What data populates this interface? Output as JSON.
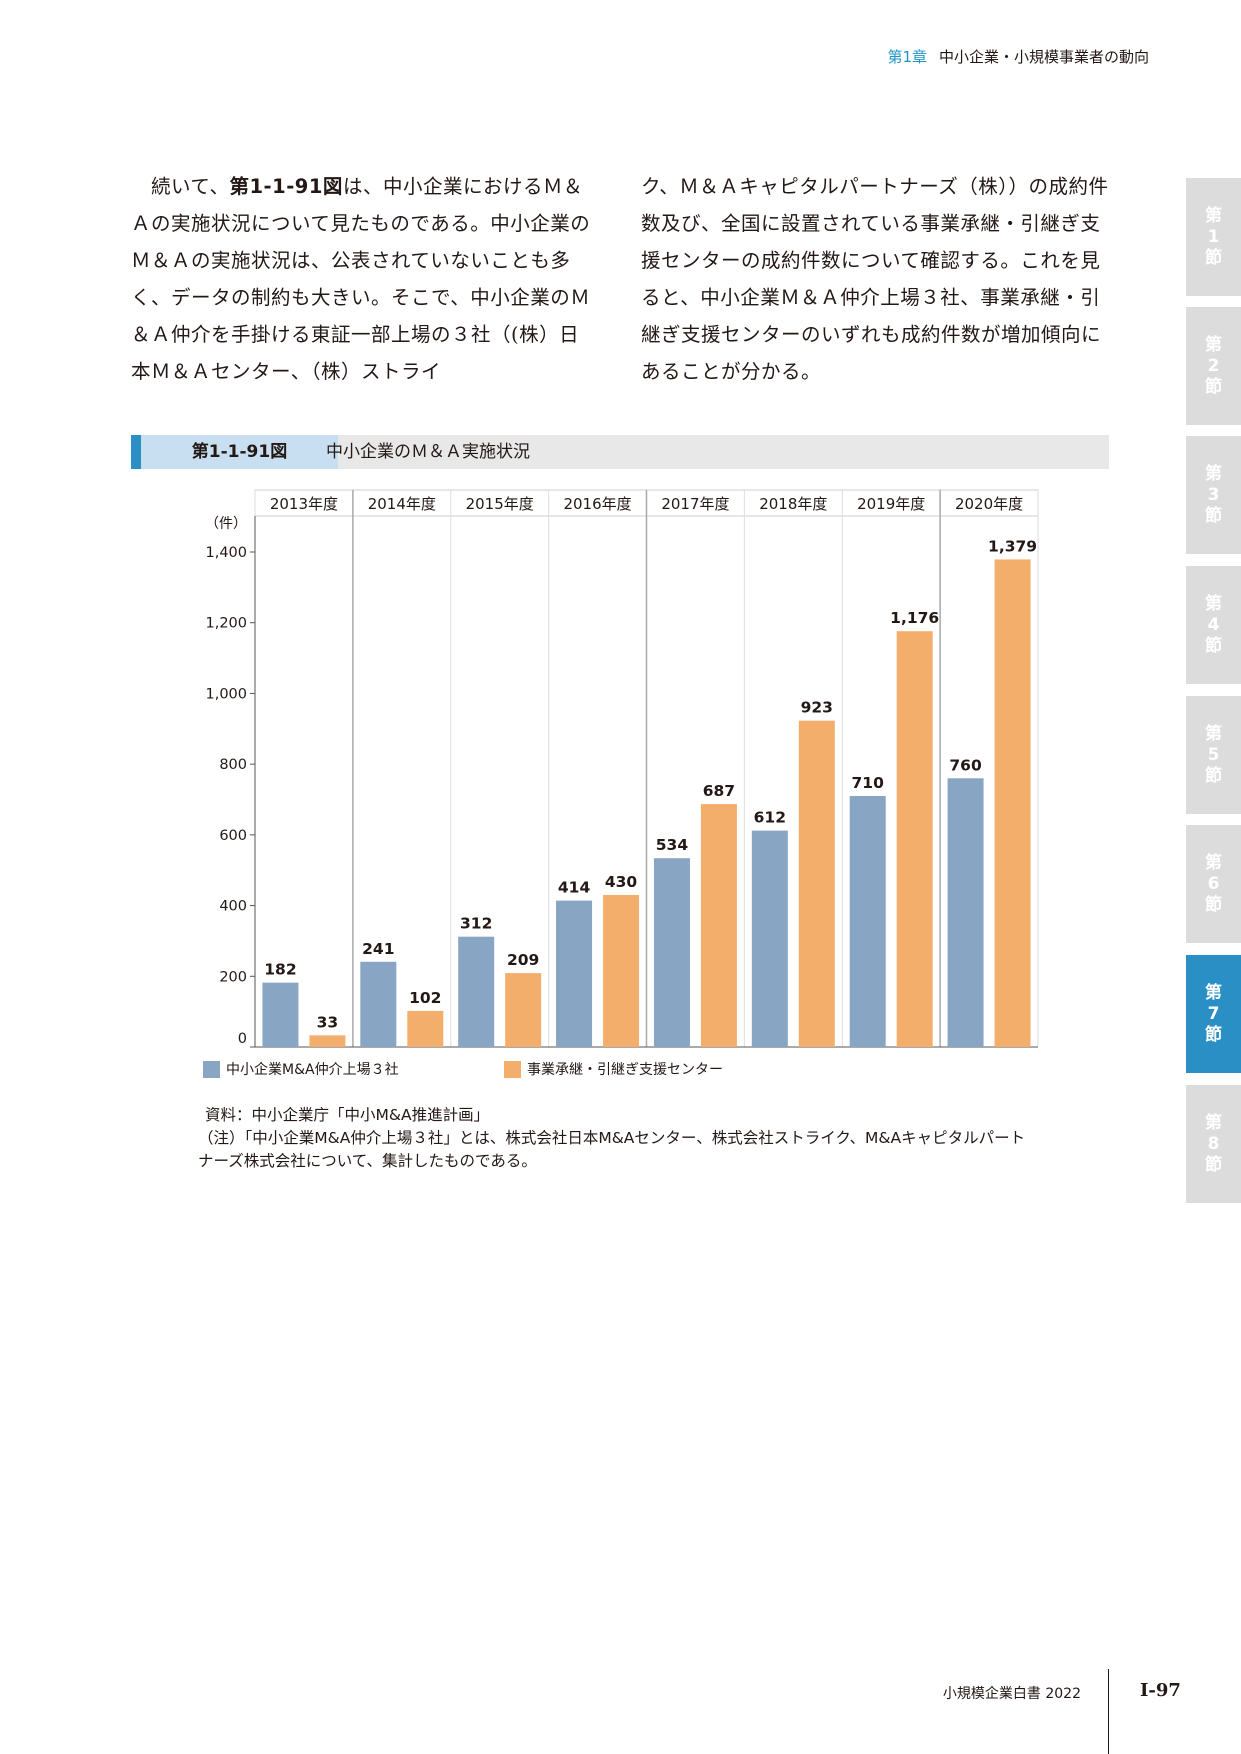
{
  "header": {
    "chapter_num": "第1章",
    "chapter_title": "中小企業・小規模事業者の動向"
  },
  "body": {
    "left_pre": "続いて、",
    "left_ref": "第1-1-91図",
    "left_post": "は、中小企業におけるＭ＆Ａの実施状況について見たものである。中小企業のＭ＆Ａの実施状況は、公表されていないことも多く、データの制約も大きい。そこで、中小企業のＭ＆Ａ仲介を手掛ける東証一部上場の３社（(株）日本Ｍ＆Ａセンター、（株）ストライ",
    "right": "ク、Ｍ＆Ａキャピタルパートナーズ（株））の成約件数及び、全国に設置されている事業承継・引継ぎ支援センターの成約件数について確認する。これを見ると、中小企業Ｍ＆Ａ仲介上場３社、事業承継・引継ぎ支援センターのいずれも成約件数が増加傾向にあることが分かる。"
  },
  "figure": {
    "number": "第1-1-91図",
    "title": "中小企業のＭ＆Ａ実施状況"
  },
  "chart_data": {
    "type": "bar",
    "categories": [
      "2013年度",
      "2014年度",
      "2015年度",
      "2016年度",
      "2017年度",
      "2018年度",
      "2019年度",
      "2020年度"
    ],
    "series": [
      {
        "name": "中小企業M&A仲介上場３社",
        "values": [
          182,
          241,
          312,
          414,
          534,
          612,
          710,
          760
        ],
        "color": "#88a5c4"
      },
      {
        "name": "事業承継・引継ぎ支援センター",
        "values": [
          33,
          102,
          209,
          430,
          687,
          923,
          1176,
          1379
        ],
        "color": "#f4ae6b"
      }
    ],
    "data_labels": {
      "a": [
        "182",
        "241",
        "312",
        "414",
        "534",
        "612",
        "710",
        "760"
      ],
      "b": [
        "33",
        "102",
        "209",
        "430",
        "687",
        "923",
        "1,176",
        "1,379"
      ]
    },
    "ylabel": "（件）",
    "ylim": [
      0,
      1400
    ],
    "yticks": [
      0,
      200,
      400,
      600,
      800,
      1000,
      1200,
      1400
    ],
    "ytick_labels": [
      "0",
      "200",
      "400",
      "600",
      "800",
      "1,000",
      "1,200",
      "1,400"
    ],
    "legend_position": "bottom",
    "grid": false
  },
  "source": "資料：中小企業庁「中小M&A推進計画」",
  "note": "（注）「中小企業M&A仲介上場３社」とは、株式会社日本M&Aセンター、株式会社ストライク、M&Aキャピタルパートナーズ株式会社について、集計したものである。",
  "side_tabs": [
    {
      "label": "第",
      "num": "1",
      "suffix": "節",
      "active": false
    },
    {
      "label": "第",
      "num": "2",
      "suffix": "節",
      "active": false
    },
    {
      "label": "第",
      "num": "3",
      "suffix": "節",
      "active": false
    },
    {
      "label": "第",
      "num": "4",
      "suffix": "節",
      "active": false
    },
    {
      "label": "第",
      "num": "5",
      "suffix": "節",
      "active": false
    },
    {
      "label": "第",
      "num": "6",
      "suffix": "節",
      "active": false
    },
    {
      "label": "第",
      "num": "7",
      "suffix": "節",
      "active": true
    },
    {
      "label": "第",
      "num": "8",
      "suffix": "節",
      "active": false
    }
  ],
  "footer": {
    "book": "小規模企業白書 2022",
    "page": "Ⅰ-97"
  }
}
